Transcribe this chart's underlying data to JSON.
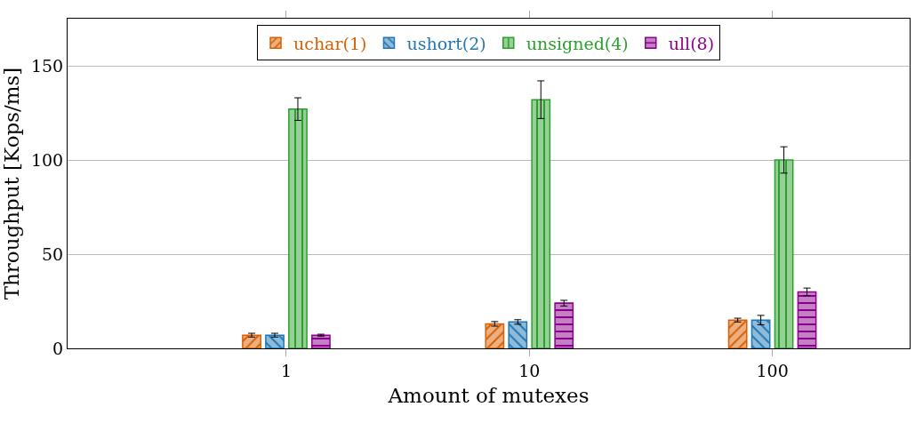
{
  "chart_data": {
    "type": "bar",
    "xlabel": "Amount of mutexes",
    "ylabel": "Throughput [Kops/ms]",
    "categories": [
      "1",
      "10",
      "100"
    ],
    "series": [
      {
        "name": "uchar(1)",
        "color": "#d95f02",
        "values": [
          7,
          13,
          15
        ],
        "errors": [
          1,
          1.2,
          1
        ]
      },
      {
        "name": "ushort(2)",
        "color": "#1f77b4",
        "values": [
          7,
          14,
          15
        ],
        "errors": [
          1,
          1.2,
          2.5
        ]
      },
      {
        "name": "unsigned(4)",
        "color": "#2ca02c",
        "values": [
          127,
          132,
          100
        ],
        "errors": [
          6,
          10,
          7
        ]
      },
      {
        "name": "ull(8)",
        "color": "#8b008b",
        "values": [
          7,
          24,
          30
        ],
        "errors": [
          0.5,
          1.5,
          2
        ]
      }
    ],
    "ylim": [
      0,
      175
    ],
    "yticks": [
      0,
      50,
      100,
      150
    ],
    "grid": "y",
    "legend": "top"
  }
}
